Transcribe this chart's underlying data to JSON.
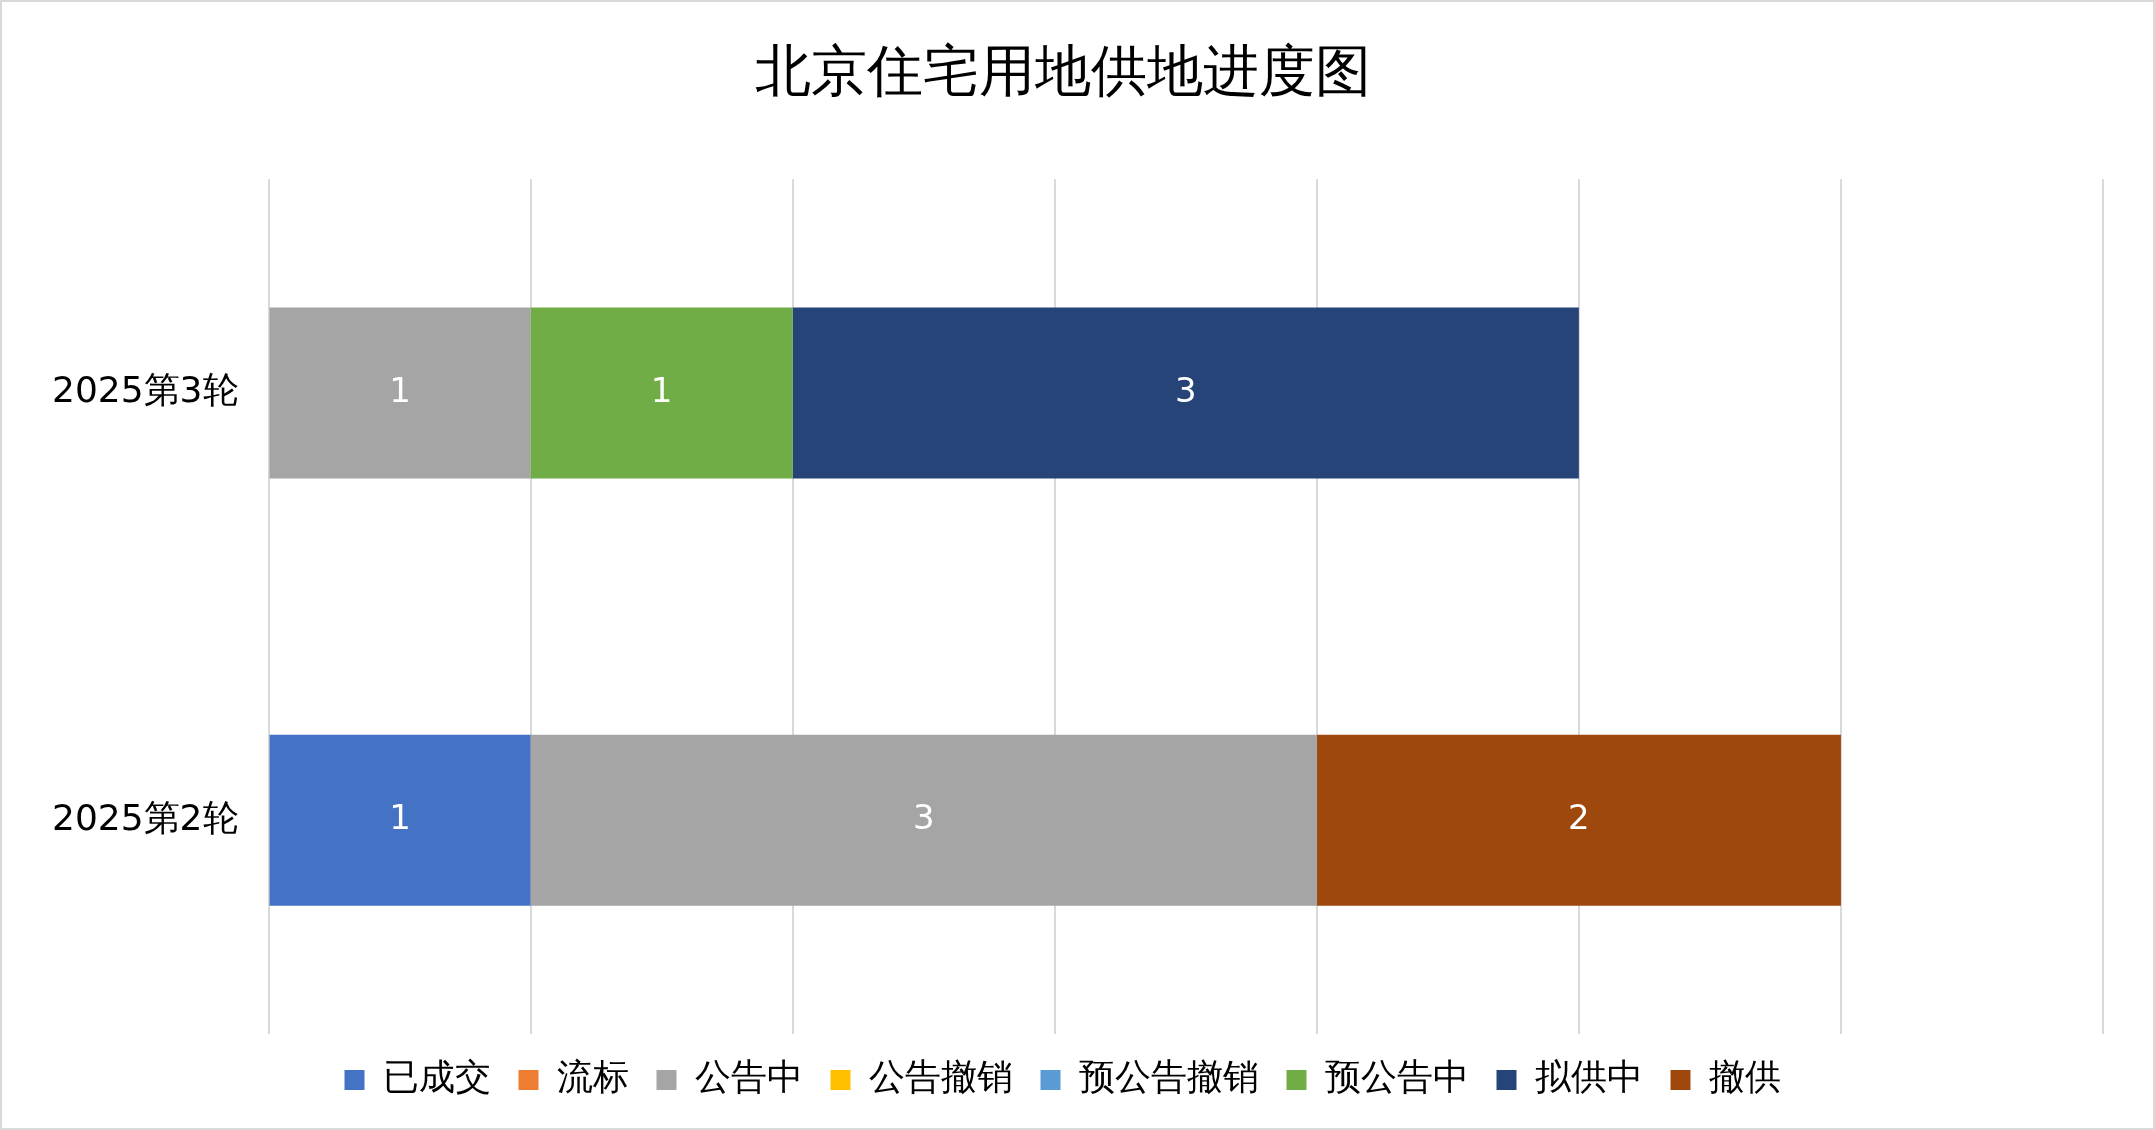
{
  "chart_data": {
    "type": "bar",
    "orientation": "horizontal",
    "stacked": true,
    "title": "北京住宅用地供地进度图",
    "categories": [
      "2025第3轮",
      "2025第2轮"
    ],
    "series": [
      {
        "name": "已成交",
        "color": "#4472c4",
        "values": [
          null,
          1
        ]
      },
      {
        "name": "流标",
        "color": "#ed7d31",
        "values": [
          null,
          null
        ]
      },
      {
        "name": "公告中",
        "color": "#a5a5a5",
        "values": [
          1,
          3
        ]
      },
      {
        "name": "公告撤销",
        "color": "#ffc000",
        "values": [
          null,
          null
        ]
      },
      {
        "name": "预公告撤销",
        "color": "#5b9bd5",
        "values": [
          null,
          null
        ]
      },
      {
        "name": "预公告中",
        "color": "#70ad47",
        "values": [
          1,
          null
        ]
      },
      {
        "name": "拟供中",
        "color": "#264478",
        "values": [
          3,
          null
        ]
      },
      {
        "name": "撤供",
        "color": "#9e480e",
        "values": [
          null,
          2
        ]
      }
    ],
    "xlim": [
      0,
      7
    ],
    "xticks": [
      {
        "value": 0,
        "label": null
      },
      {
        "value": 1,
        "label": null
      },
      {
        "value": 2,
        "label": null
      },
      {
        "value": 3,
        "label": null
      },
      {
        "value": 4,
        "label": null
      },
      {
        "value": 5,
        "label": null
      },
      {
        "value": 6,
        "label": null
      },
      {
        "value": 7,
        "label": null
      }
    ],
    "tick_labels": "y",
    "grid": "x",
    "legend": "bottom",
    "data_labels": true
  }
}
